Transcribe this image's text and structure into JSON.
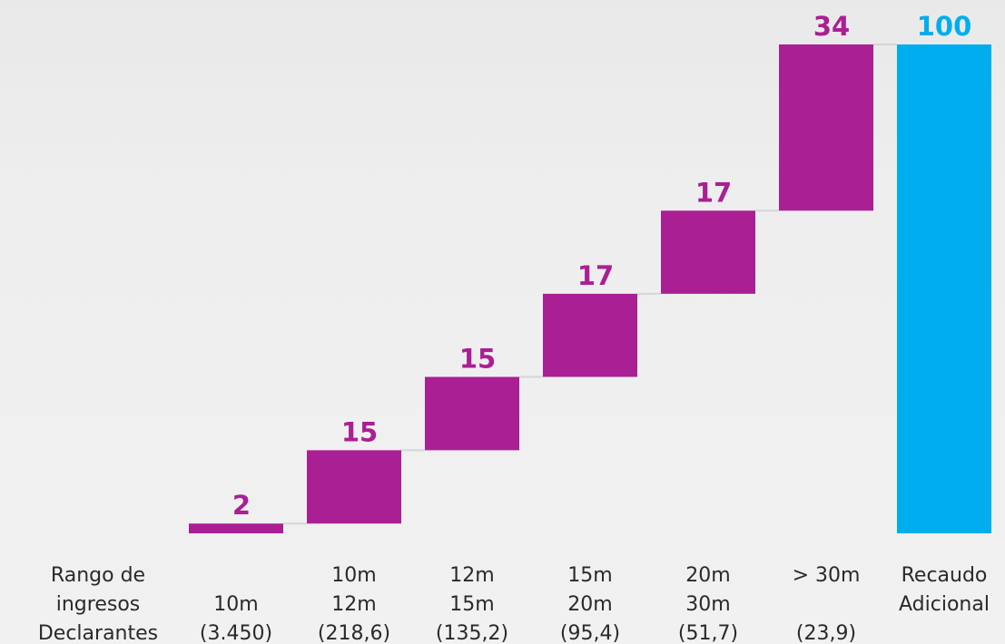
{
  "chart_data": {
    "type": "waterfall",
    "colors": {
      "step": "#aa1f94",
      "total": "#00aeef",
      "connector": "#d6d6d6",
      "text": "#2a2a2a"
    },
    "row_labels": [
      "Rango de",
      "ingresos",
      "Declarantes"
    ],
    "ylim": [
      0,
      100
    ],
    "bars": [
      {
        "value": 2,
        "label": "2",
        "range_lines": [
          "",
          "10m"
        ],
        "declarantes": "(3.450)",
        "kind": "step"
      },
      {
        "value": 15,
        "label": "15",
        "range_lines": [
          "10m",
          "12m"
        ],
        "declarantes": "(218,6)",
        "kind": "step"
      },
      {
        "value": 15,
        "label": "15",
        "range_lines": [
          "12m",
          "15m"
        ],
        "declarantes": "(135,2)",
        "kind": "step"
      },
      {
        "value": 17,
        "label": "17",
        "range_lines": [
          "15m",
          "20m"
        ],
        "declarantes": "(95,4)",
        "kind": "step"
      },
      {
        "value": 17,
        "label": "17",
        "range_lines": [
          "20m",
          "30m"
        ],
        "declarantes": "(51,7)",
        "kind": "step"
      },
      {
        "value": 34,
        "label": "34",
        "range_lines": [
          "> 30m",
          ""
        ],
        "declarantes": "(23,9)",
        "kind": "step"
      },
      {
        "value": 100,
        "label": "100",
        "range_lines": [
          "Recaudo",
          "Adicional"
        ],
        "declarantes": "",
        "kind": "total"
      }
    ]
  }
}
